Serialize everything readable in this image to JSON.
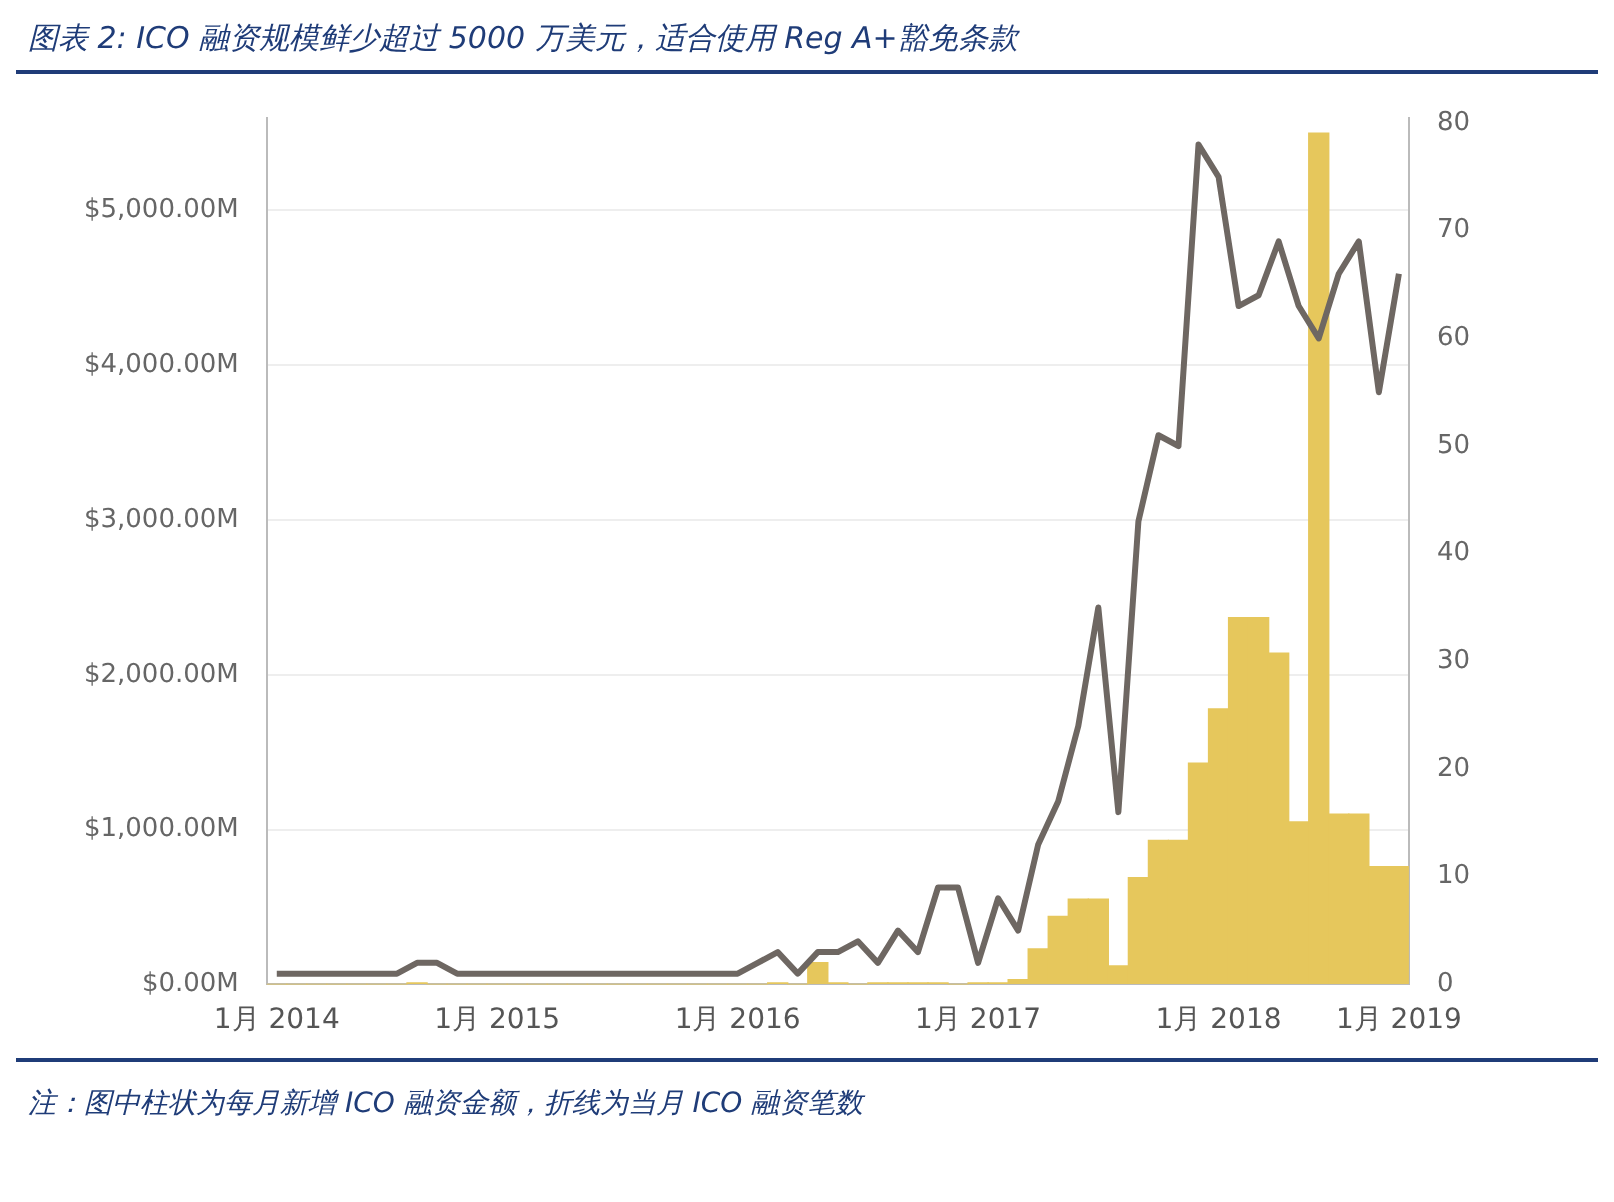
{
  "chart_data": {
    "type": "bar",
    "title": "图表 2:  ICO 融资规模鲜少超过 5000 万美元，适合使用 Reg A+豁免条款",
    "annotations": [
      "注：图中柱状为每月新增 ICO 融资金额，折线为当月 ICO 融资笔数"
    ],
    "categories": [
      "1月 2014",
      null,
      null,
      null,
      null,
      null,
      null,
      null,
      null,
      null,
      null,
      "1月 2015",
      null,
      null,
      null,
      null,
      null,
      null,
      null,
      null,
      null,
      null,
      null,
      "1月 2016",
      null,
      null,
      null,
      null,
      null,
      null,
      null,
      null,
      null,
      null,
      null,
      "1月 2017",
      null,
      null,
      null,
      null,
      null,
      null,
      null,
      null,
      null,
      null,
      null,
      "1月 2018",
      null,
      null,
      null,
      null,
      null,
      null,
      null,
      null,
      "1月 2019"
    ],
    "series": [
      {
        "color": "#e6c75c",
        "values": [
          0,
          0,
          0,
          0,
          0,
          0,
          0,
          10,
          0,
          0,
          0,
          0,
          0,
          0,
          0,
          0,
          0,
          0,
          0,
          0,
          0,
          0,
          0,
          0,
          0,
          10,
          0,
          140,
          10,
          0,
          10,
          10,
          10,
          10,
          0,
          10,
          10,
          30,
          230,
          440,
          550,
          550,
          120,
          690,
          930,
          930,
          1430,
          1780,
          2370,
          2370,
          2140,
          1050,
          5500,
          1100,
          1100,
          760,
          760
        ]
      },
      {
        "type": "line",
        "axis": "y2",
        "color": "#6e6762",
        "values": [
          1,
          1,
          1,
          1,
          1,
          1,
          1,
          2,
          2,
          1,
          1,
          1,
          1,
          1,
          1,
          1,
          1,
          1,
          1,
          1,
          1,
          1,
          1,
          1,
          2,
          3,
          1,
          3,
          3,
          4,
          2,
          5,
          3,
          9,
          9,
          2,
          8,
          5,
          13,
          17,
          24,
          35,
          16,
          43,
          51,
          50,
          78,
          75,
          63,
          64,
          69,
          63,
          60,
          66,
          69,
          55,
          66
        ]
      }
    ],
    "ylim": [
      0,
      5600
    ],
    "yticks": [
      {
        "value": 0,
        "label": "$0.00M"
      },
      {
        "value": 1000,
        "label": "$1,000.00M"
      },
      {
        "value": 2000,
        "label": "$2,000.00M"
      },
      {
        "value": 3000,
        "label": "$3,000.00M"
      },
      {
        "value": 4000,
        "label": "$4,000.00M"
      },
      {
        "value": 5000,
        "label": "$5,000.00M"
      }
    ],
    "y2lim": [
      0,
      80.5
    ],
    "y2ticks": [
      0,
      10,
      20,
      30,
      40,
      50,
      60,
      70,
      80
    ],
    "grid": "y"
  }
}
